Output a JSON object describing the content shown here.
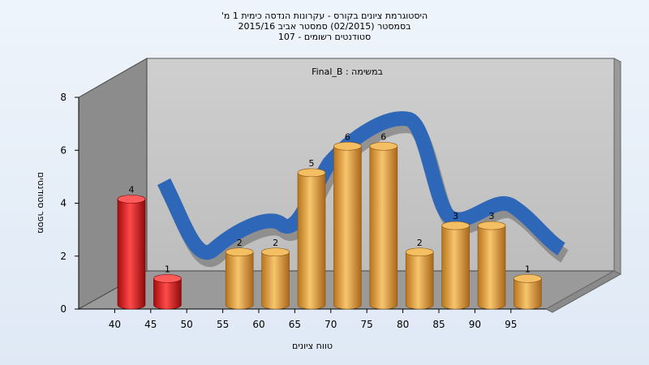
{
  "chart_data": {
    "type": "bar",
    "title_lines": [
      "היסטוגרמת ציונים בקורס - עקרונות הנדסה כימית 1 מ'",
      "בסמסטר  (02/2015)  סמסטר אביב 2015/16",
      "סטודנטים רשומים - 107"
    ],
    "subtitle": "במשימה : Final_B",
    "xlabel": "טווח ציונים",
    "ylabel": "מספר סטודנטים",
    "categories": [
      "40",
      "45",
      "50",
      "55",
      "60",
      "65",
      "70",
      "75",
      "80",
      "85",
      "90",
      "95"
    ],
    "values": [
      4,
      1,
      null,
      2,
      2,
      5,
      6,
      6,
      2,
      3,
      3,
      1
    ],
    "ylim": [
      0,
      8
    ],
    "yticks": [
      0,
      2,
      4,
      6,
      8
    ],
    "grid": false,
    "colors": {
      "fail": "#e01a1a",
      "pass": "#e8a33c",
      "curve": "#2e66b8",
      "back_wall": "#c4c4c4",
      "side_wall": "#8a8a8a"
    },
    "fail_categories": [
      "40",
      "45"
    ],
    "trend_curve": "blue-ribbon"
  }
}
